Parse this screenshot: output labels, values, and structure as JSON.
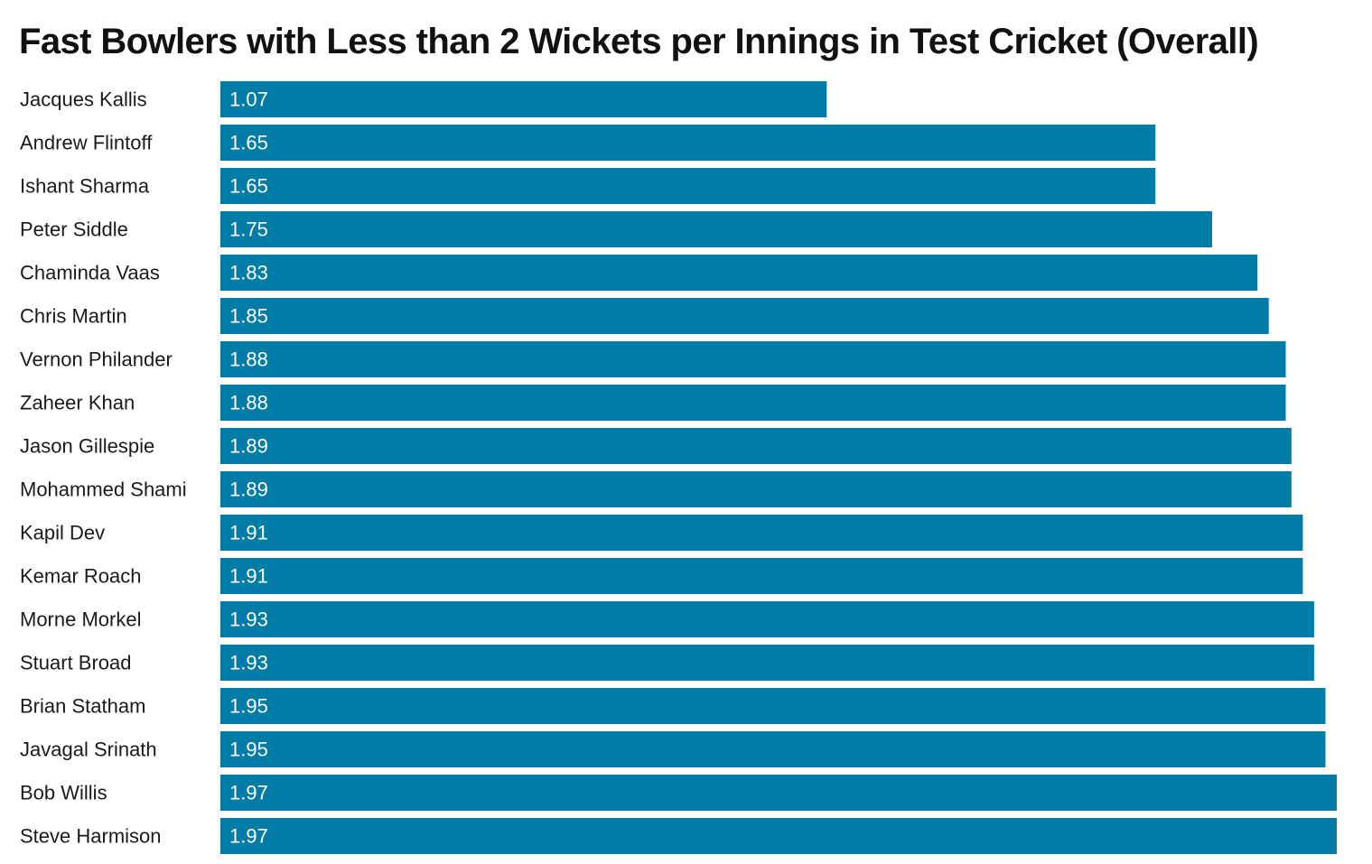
{
  "chart_data": {
    "type": "bar",
    "orientation": "horizontal",
    "title": "Fast Bowlers with Less than 2 Wickets per Innings in Test Cricket (Overall)",
    "xlabel": "",
    "ylabel": "",
    "xlim": [
      0,
      1.97
    ],
    "grid": false,
    "legend": "none",
    "bar_color": "#007ca7",
    "value_label_color": "#ffffff",
    "categories": [
      "Jacques Kallis",
      "Andrew Flintoff",
      "Ishant Sharma",
      "Peter Siddle",
      "Chaminda Vaas",
      "Chris Martin",
      "Vernon Philander",
      "Zaheer Khan",
      "Jason Gillespie",
      "Mohammed Shami",
      "Kapil Dev",
      "Kemar Roach",
      "Morne Morkel",
      "Stuart Broad",
      "Brian Statham",
      "Javagal Srinath",
      "Bob Willis",
      "Steve Harmison"
    ],
    "values": [
      1.07,
      1.65,
      1.65,
      1.75,
      1.83,
      1.85,
      1.88,
      1.88,
      1.89,
      1.89,
      1.91,
      1.91,
      1.93,
      1.93,
      1.95,
      1.95,
      1.97,
      1.97
    ],
    "value_labels": [
      "1.07",
      "1.65",
      "1.65",
      "1.75",
      "1.83",
      "1.85",
      "1.88",
      "1.88",
      "1.89",
      "1.89",
      "1.91",
      "1.91",
      "1.93",
      "1.93",
      "1.95",
      "1.95",
      "1.97",
      "1.97"
    ]
  }
}
